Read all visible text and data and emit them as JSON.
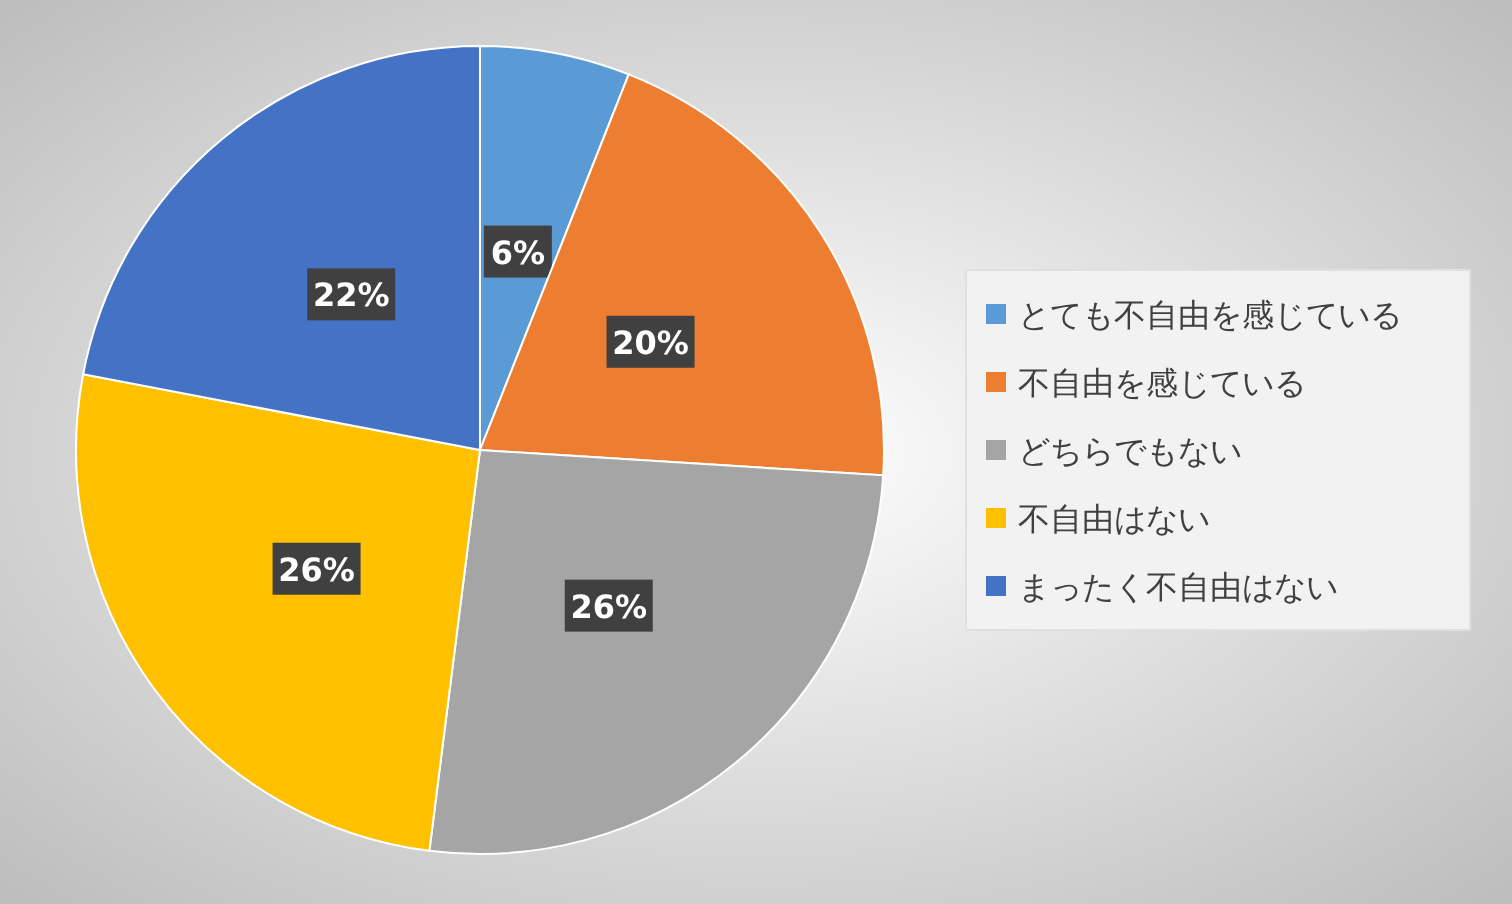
{
  "chart_data": {
    "type": "pie",
    "categories": [
      "とても不自由を感じている",
      "不自由を感じている",
      "どちらでもない",
      "不自由はない",
      "まったく不自由はない"
    ],
    "values": [
      6,
      20,
      26,
      26,
      22
    ],
    "value_labels": [
      "6%",
      "20%",
      "26%",
      "26%",
      "22%"
    ],
    "colors": [
      "#5b9bd5",
      "#ed7d31",
      "#a5a5a5",
      "#ffc000",
      "#4472c4"
    ],
    "legend": "right"
  }
}
